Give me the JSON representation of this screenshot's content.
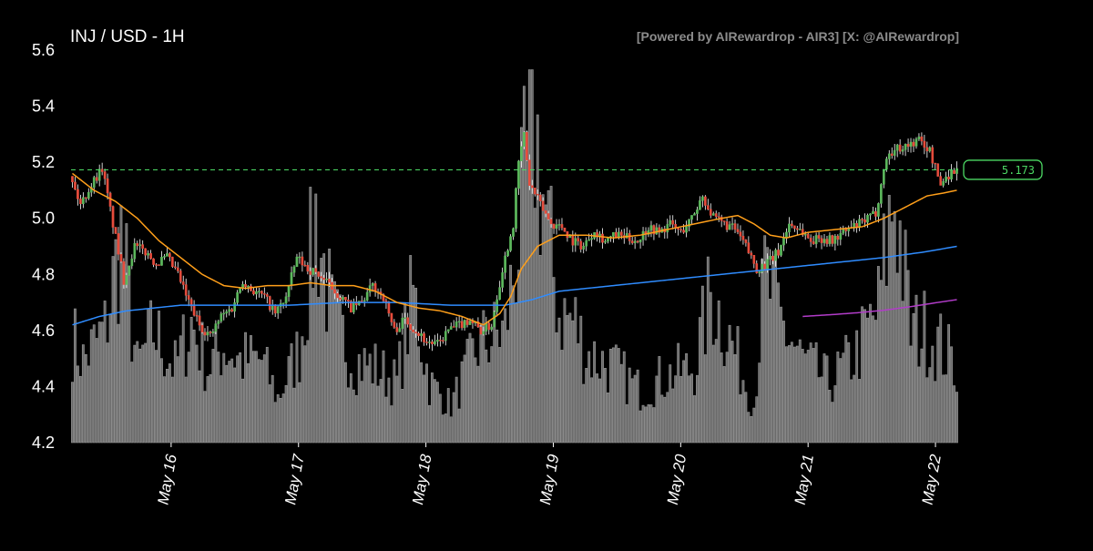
{
  "chart_data": {
    "type": "candlestick",
    "title": "INJ / USD - 1H",
    "credit": "[Powered by AIRewardrop - AIR3] [X: @AIRewardrop]",
    "ylim": [
      4.2,
      5.6
    ],
    "yticks": [
      "4.2",
      "4.4",
      "4.6",
      "4.8",
      "5.0",
      "5.2",
      "5.4",
      "5.6"
    ],
    "xtick_labels": [
      "May 16",
      "May 17",
      "May 18",
      "May 19",
      "May 20",
      "May 21",
      "May 22"
    ],
    "current_price": 5.173,
    "current_price_label": "5.173",
    "colors": {
      "up": "#5cb85c",
      "down": "#e74c3c",
      "volume": "#6b6b6b",
      "ma_fast": "#ff9f1a",
      "ma_mid": "#2f8cff",
      "ma_slow": "#b23cc9",
      "price_line": "#4cd964"
    },
    "price_path": [
      [
        0,
        5.15
      ],
      [
        4,
        5.05
      ],
      [
        8,
        5.12
      ],
      [
        12,
        5.18
      ],
      [
        16,
        4.98
      ],
      [
        20,
        4.78
      ],
      [
        24,
        4.9
      ],
      [
        28,
        4.88
      ],
      [
        32,
        4.84
      ],
      [
        36,
        4.86
      ],
      [
        40,
        4.8
      ],
      [
        44,
        4.7
      ],
      [
        48,
        4.62
      ],
      [
        52,
        4.58
      ],
      [
        56,
        4.65
      ],
      [
        60,
        4.68
      ],
      [
        64,
        4.78
      ],
      [
        68,
        4.74
      ],
      [
        72,
        4.72
      ],
      [
        76,
        4.66
      ],
      [
        80,
        4.72
      ],
      [
        84,
        4.86
      ],
      [
        88,
        4.82
      ],
      [
        92,
        4.8
      ],
      [
        96,
        4.76
      ],
      [
        100,
        4.72
      ],
      [
        104,
        4.68
      ],
      [
        108,
        4.7
      ],
      [
        112,
        4.76
      ],
      [
        116,
        4.72
      ],
      [
        120,
        4.6
      ],
      [
        124,
        4.64
      ],
      [
        128,
        4.6
      ],
      [
        132,
        4.56
      ],
      [
        136,
        4.55
      ],
      [
        140,
        4.6
      ],
      [
        144,
        4.62
      ],
      [
        148,
        4.64
      ],
      [
        152,
        4.6
      ],
      [
        156,
        4.62
      ],
      [
        160,
        4.82
      ],
      [
        164,
        4.98
      ],
      [
        166,
        5.2
      ],
      [
        168,
        5.3
      ],
      [
        170,
        5.12
      ],
      [
        174,
        5.05
      ],
      [
        178,
        4.98
      ],
      [
        182,
        4.97
      ],
      [
        186,
        4.92
      ],
      [
        190,
        4.9
      ],
      [
        194,
        4.96
      ],
      [
        198,
        4.92
      ],
      [
        202,
        4.94
      ],
      [
        206,
        4.93
      ],
      [
        210,
        4.92
      ],
      [
        214,
        4.97
      ],
      [
        218,
        4.95
      ],
      [
        222,
        4.98
      ],
      [
        226,
        4.95
      ],
      [
        230,
        5.0
      ],
      [
        234,
        5.08
      ],
      [
        238,
        5.0
      ],
      [
        242,
        4.98
      ],
      [
        246,
        4.96
      ],
      [
        250,
        4.9
      ],
      [
        254,
        4.82
      ],
      [
        258,
        4.84
      ],
      [
        262,
        4.88
      ],
      [
        266,
        4.98
      ],
      [
        270,
        4.96
      ],
      [
        274,
        4.92
      ],
      [
        278,
        4.93
      ],
      [
        282,
        4.92
      ],
      [
        286,
        4.95
      ],
      [
        290,
        4.97
      ],
      [
        294,
        4.99
      ],
      [
        298,
        5.02
      ],
      [
        302,
        5.22
      ],
      [
        306,
        5.25
      ],
      [
        310,
        5.26
      ],
      [
        314,
        5.28
      ],
      [
        318,
        5.24
      ],
      [
        320,
        5.18
      ],
      [
        322,
        5.12
      ],
      [
        324,
        5.15
      ],
      [
        327,
        5.17
      ]
    ],
    "volume_path": [
      [
        0,
        0.28
      ],
      [
        4,
        0.22
      ],
      [
        12,
        0.3
      ],
      [
        18,
        0.55
      ],
      [
        24,
        0.2
      ],
      [
        30,
        0.3
      ],
      [
        38,
        0.2
      ],
      [
        44,
        0.32
      ],
      [
        50,
        0.2
      ],
      [
        56,
        0.26
      ],
      [
        62,
        0.22
      ],
      [
        70,
        0.22
      ],
      [
        76,
        0.12
      ],
      [
        84,
        0.25
      ],
      [
        90,
        0.6
      ],
      [
        96,
        0.34
      ],
      [
        104,
        0.22
      ],
      [
        112,
        0.2
      ],
      [
        120,
        0.16
      ],
      [
        126,
        0.4
      ],
      [
        132,
        0.16
      ],
      [
        140,
        0.1
      ],
      [
        150,
        0.26
      ],
      [
        160,
        0.3
      ],
      [
        166,
        0.6
      ],
      [
        170,
        0.9
      ],
      [
        176,
        0.55
      ],
      [
        180,
        0.35
      ],
      [
        186,
        0.32
      ],
      [
        190,
        0.24
      ],
      [
        200,
        0.2
      ],
      [
        210,
        0.14
      ],
      [
        220,
        0.18
      ],
      [
        230,
        0.2
      ],
      [
        236,
        0.4
      ],
      [
        242,
        0.3
      ],
      [
        248,
        0.18
      ],
      [
        252,
        0.1
      ],
      [
        256,
        0.45
      ],
      [
        262,
        0.32
      ],
      [
        270,
        0.22
      ],
      [
        280,
        0.16
      ],
      [
        290,
        0.24
      ],
      [
        298,
        0.36
      ],
      [
        304,
        0.68
      ],
      [
        310,
        0.3
      ],
      [
        316,
        0.3
      ],
      [
        322,
        0.25
      ],
      [
        327,
        0.2
      ]
    ],
    "ma_fast": [
      [
        0,
        5.16
      ],
      [
        8,
        5.1
      ],
      [
        16,
        5.06
      ],
      [
        24,
        5.0
      ],
      [
        32,
        4.92
      ],
      [
        40,
        4.86
      ],
      [
        48,
        4.8
      ],
      [
        56,
        4.76
      ],
      [
        64,
        4.75
      ],
      [
        72,
        4.76
      ],
      [
        80,
        4.76
      ],
      [
        88,
        4.77
      ],
      [
        96,
        4.76
      ],
      [
        104,
        4.76
      ],
      [
        112,
        4.74
      ],
      [
        120,
        4.7
      ],
      [
        128,
        4.68
      ],
      [
        136,
        4.67
      ],
      [
        144,
        4.65
      ],
      [
        152,
        4.62
      ],
      [
        158,
        4.66
      ],
      [
        162,
        4.72
      ],
      [
        166,
        4.82
      ],
      [
        172,
        4.9
      ],
      [
        180,
        4.94
      ],
      [
        190,
        4.94
      ],
      [
        200,
        4.93
      ],
      [
        210,
        4.94
      ],
      [
        220,
        4.96
      ],
      [
        230,
        4.98
      ],
      [
        240,
        5.0
      ],
      [
        246,
        5.01
      ],
      [
        252,
        4.98
      ],
      [
        258,
        4.94
      ],
      [
        264,
        4.93
      ],
      [
        272,
        4.95
      ],
      [
        282,
        4.96
      ],
      [
        292,
        4.97
      ],
      [
        300,
        5.0
      ],
      [
        308,
        5.04
      ],
      [
        316,
        5.08
      ],
      [
        322,
        5.09
      ],
      [
        327,
        5.1
      ]
    ],
    "ma_mid": [
      [
        0,
        4.62
      ],
      [
        10,
        4.65
      ],
      [
        20,
        4.67
      ],
      [
        30,
        4.68
      ],
      [
        40,
        4.69
      ],
      [
        60,
        4.69
      ],
      [
        80,
        4.69
      ],
      [
        100,
        4.7
      ],
      [
        120,
        4.7
      ],
      [
        140,
        4.69
      ],
      [
        160,
        4.69
      ],
      [
        170,
        4.71
      ],
      [
        180,
        4.74
      ],
      [
        200,
        4.76
      ],
      [
        220,
        4.78
      ],
      [
        240,
        4.8
      ],
      [
        260,
        4.82
      ],
      [
        280,
        4.84
      ],
      [
        300,
        4.86
      ],
      [
        315,
        4.88
      ],
      [
        327,
        4.9
      ]
    ],
    "ma_slow": [
      [
        270,
        4.65
      ],
      [
        280,
        4.656
      ],
      [
        290,
        4.663
      ],
      [
        300,
        4.672
      ],
      [
        310,
        4.685
      ],
      [
        320,
        4.7
      ],
      [
        327,
        4.71
      ]
    ]
  }
}
